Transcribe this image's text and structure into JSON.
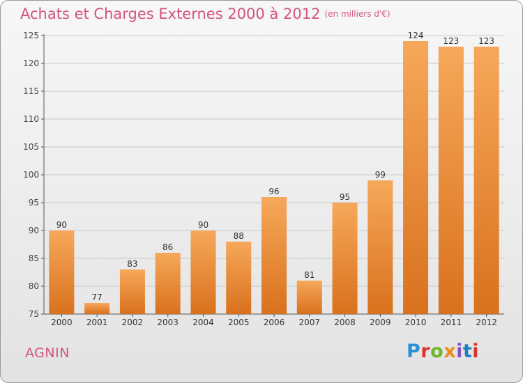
{
  "header": {
    "title": "Achats et Charges Externes 2000 à 2012",
    "unit": "(en milliers d'€)"
  },
  "footer": {
    "place": "AGNIN",
    "logo_text": "Proxiti",
    "logo_colors": [
      "#2c8fd6",
      "#e0312b",
      "#6fb42c",
      "#f08a1a",
      "#8a4fc2",
      "#1e7fc0",
      "#e0312b"
    ]
  },
  "colors": {
    "bar_light": "#f6a85a",
    "bar_dark": "#d9711d",
    "title": "#d2547e",
    "grid": "#c8c8c8"
  },
  "chart_data": {
    "type": "bar",
    "title": "Achats et Charges Externes 2000 à 2012",
    "subtitle": "(en milliers d'€)",
    "categories": [
      "2000",
      "2001",
      "2002",
      "2003",
      "2004",
      "2005",
      "2006",
      "2007",
      "2008",
      "2009",
      "2010",
      "2011",
      "2012"
    ],
    "values": [
      90,
      77,
      83,
      86,
      90,
      88,
      96,
      81,
      95,
      99,
      124,
      123,
      123
    ],
    "ylim": [
      75,
      125
    ],
    "yticks": [
      75,
      80,
      85,
      90,
      95,
      100,
      105,
      110,
      115,
      120,
      125
    ],
    "xlabel": "",
    "ylabel": "",
    "grid": true
  }
}
